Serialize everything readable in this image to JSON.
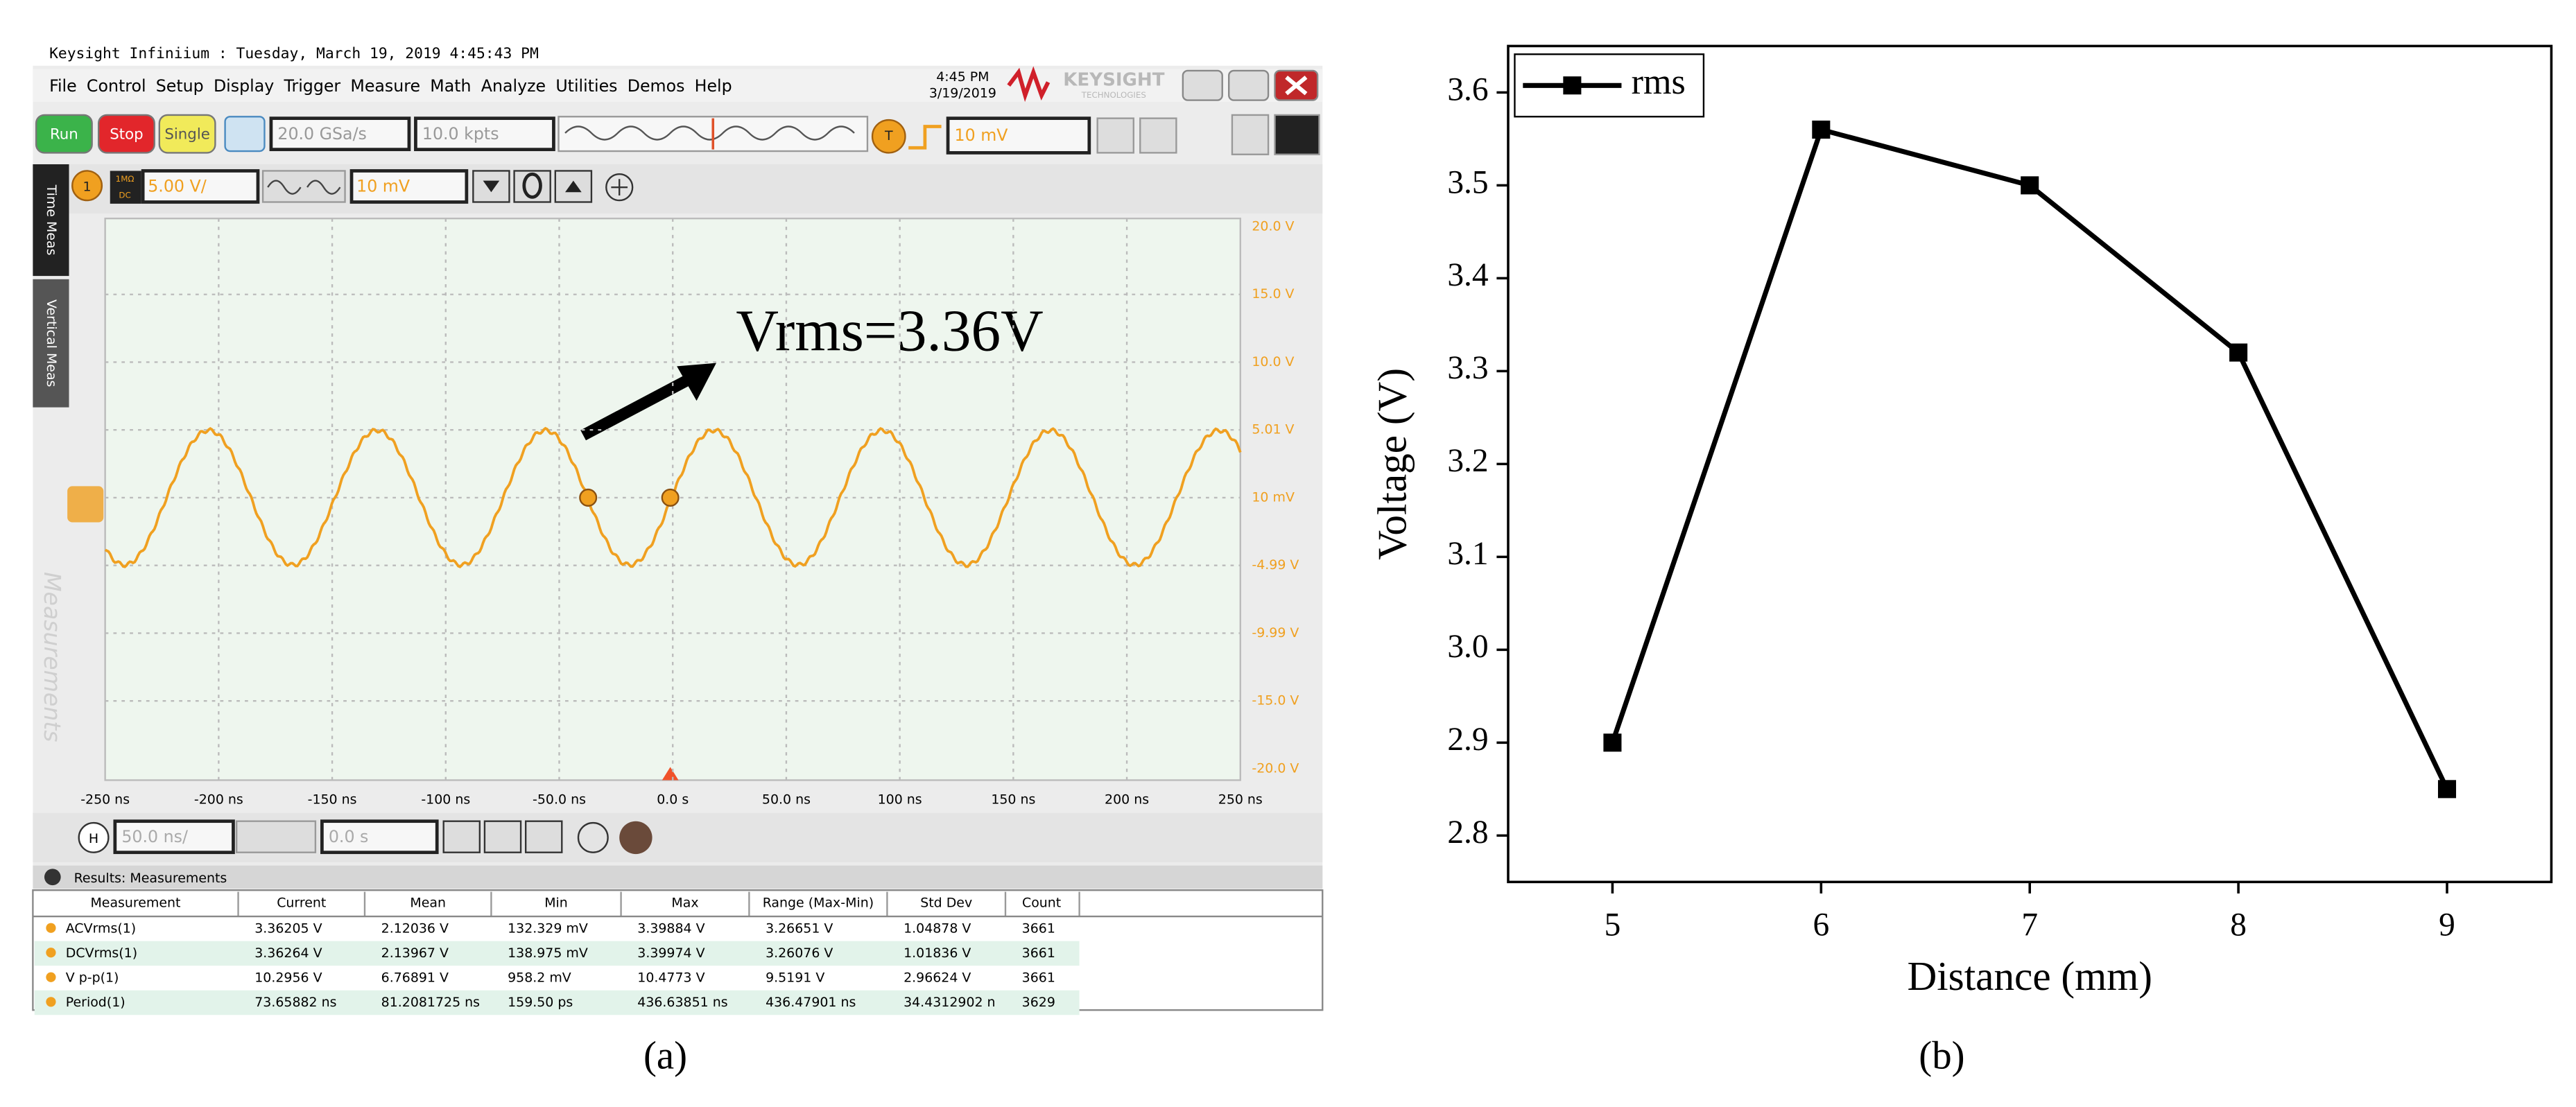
{
  "screenshot": {
    "title_bar": "Keysight Infiniium : Tuesday, March 19, 2019 4:45:43 PM",
    "menu": [
      "File",
      "Control",
      "Setup",
      "Display",
      "Trigger",
      "Measure",
      "Math",
      "Analyze",
      "Utilities",
      "Demos",
      "Help"
    ],
    "clock": {
      "time": "4:45 PM",
      "date": "3/19/2019"
    },
    "brand": {
      "name": "KEYSIGHT",
      "sub": "TECHNOLOGIES"
    },
    "toolbar": {
      "run": "Run",
      "stop": "Stop",
      "single": "Single",
      "sample_rate": "20.0 GSa/s",
      "memory": "10.0 kpts",
      "trigger_label": "T",
      "trigger_level": "10 mV"
    },
    "channel": {
      "number": "1",
      "impedance": "1MΩ",
      "coupling": "DC",
      "scale": "5.00 V/",
      "offset": "10 mV"
    },
    "horizontal": {
      "label": "H",
      "scale": "50.0 ns/",
      "position": "0.0 s"
    },
    "side_tabs": [
      "Time Meas",
      "Vertical Meas",
      "Measurements"
    ],
    "y_labels": [
      "20.0 V",
      "15.0 V",
      "10.0 V",
      "5.01 V",
      "10 mV",
      "-4.99 V",
      "-9.99 V",
      "-15.0 V",
      "-20.0 V"
    ],
    "x_labels": [
      "-250 ns",
      "-200 ns",
      "-150 ns",
      "-100 ns",
      "-50.0 ns",
      "0.0 s",
      "50.0 ns",
      "100 ns",
      "150 ns",
      "200 ns",
      "250 ns"
    ],
    "annotation": "Vrms=3.36V",
    "results": {
      "title": "Results: Measurements",
      "columns": [
        "Measurement",
        "Current",
        "Mean",
        "Min",
        "Max",
        "Range (Max-Min)",
        "Std Dev",
        "Count"
      ],
      "rows": [
        [
          "ACVrms(1)",
          "3.36205 V",
          "2.12036 V",
          "132.329 mV",
          "3.39884 V",
          "3.26651 V",
          "1.04878 V",
          "3661"
        ],
        [
          "DCVrms(1)",
          "3.36264 V",
          "2.13967 V",
          "138.975 mV",
          "3.39974 V",
          "3.26076 V",
          "1.01836 V",
          "3661"
        ],
        [
          "V p-p(1)",
          "10.2956 V",
          "6.76891 V",
          "958.2 mV",
          "10.4773 V",
          "9.5191 V",
          "2.96624 V",
          "3661"
        ],
        [
          "Period(1)",
          "73.65882 ns",
          "81.2081725 ns",
          "159.50 ps",
          "436.63851 ns",
          "436.47901 ns",
          "34.4312902 n",
          "3629"
        ]
      ]
    },
    "caption": "(a)"
  },
  "chart_data": {
    "type": "line",
    "x_label": "Distance (mm)",
    "y_label": "Voltage (V)",
    "x": [
      5,
      6,
      7,
      8,
      9
    ],
    "series": [
      {
        "name": "rms",
        "color": "#000000",
        "marker": "square",
        "values": [
          2.9,
          3.56,
          3.5,
          3.32,
          2.85
        ]
      }
    ],
    "xlim": [
      4.5,
      9.5
    ],
    "xticks": [
      5,
      6,
      7,
      8,
      9
    ],
    "ylim": [
      2.75,
      3.65
    ],
    "yticks": [
      2.8,
      2.9,
      {
        "value": 3,
        "label": "3.0"
      },
      3.1,
      3.2,
      3.3,
      3.4,
      3.5,
      3.6
    ],
    "grid": false,
    "legend": "upper left",
    "caption": "(b)"
  }
}
